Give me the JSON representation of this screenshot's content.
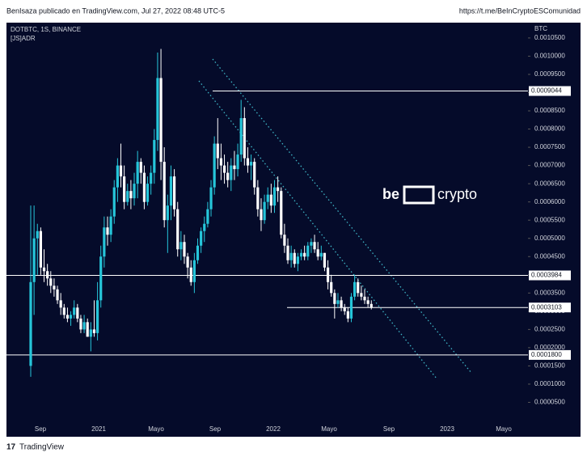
{
  "header": {
    "author": "BenIsaza publicado en TradingView.com, Jul 27, 2022 08:48 UTC-5",
    "link": "https://t.me/BeInCryptoESComunidad"
  },
  "footer": {
    "brand": "TradingView"
  },
  "watermark": {
    "left": "be",
    "right": "crypto"
  },
  "chart_data": {
    "type": "candlestick",
    "title": "DOTBTC, 1S, BINANCE",
    "subtitle": "[JS]ADR",
    "y_axis_label": "BTC",
    "up_color": "#26c6da",
    "down_color": "#ffffff",
    "x_labels": [
      "Sep",
      "2021",
      "Mayo",
      "Sep",
      "2022",
      "Mayo",
      "Sep",
      "2023",
      "Mayo"
    ],
    "ylim": [
      0,
      0.001092
    ],
    "yticks": [
      {
        "value": 5e-05,
        "label": "0.0000500"
      },
      {
        "value": 0.0001,
        "label": "0.0001000"
      },
      {
        "value": 0.00015,
        "label": "0.0001500"
      },
      {
        "value": 0.0002,
        "label": "0.0002000"
      },
      {
        "value": 0.00025,
        "label": "0.0002500"
      },
      {
        "value": 0.0003,
        "label": "0.0003000"
      },
      {
        "value": 0.00035,
        "label": "0.0003500"
      },
      {
        "value": 0.0004,
        "label": "0.0004000"
      },
      {
        "value": 0.00045,
        "label": "0.0004500"
      },
      {
        "value": 0.0005,
        "label": "0.0005000"
      },
      {
        "value": 0.00055,
        "label": "0.0005500"
      },
      {
        "value": 0.0006,
        "label": "0.0006000"
      },
      {
        "value": 0.00065,
        "label": "0.0006500"
      },
      {
        "value": 0.0007,
        "label": "0.0007000"
      },
      {
        "value": 0.00075,
        "label": "0.0007500"
      },
      {
        "value": 0.0008,
        "label": "0.0008000"
      },
      {
        "value": 0.00085,
        "label": "0.0008500"
      },
      {
        "value": 0.0009,
        "label": "0.0009000"
      },
      {
        "value": 0.00095,
        "label": "0.0009500"
      },
      {
        "value": 0.001,
        "label": "0.0010000"
      },
      {
        "value": 0.00105,
        "label": "0.0010500"
      }
    ],
    "levels": [
      {
        "value": 0.0009044,
        "label": "0.0009044"
      },
      {
        "value": 0.0003984,
        "label": "0.0003984"
      },
      {
        "value": 0.0003103,
        "label": "0.0003103"
      },
      {
        "value": 0.00018,
        "label": "0.0001800"
      }
    ],
    "ohlc": [
      [
        0.00015,
        0.00059,
        0.00012,
        0.00038
      ],
      [
        0.00038,
        0.00059,
        0.00029,
        0.0005
      ],
      [
        0.0005,
        0.00054,
        0.0004,
        0.00052
      ],
      [
        0.00052,
        0.00053,
        0.0004,
        0.00042
      ],
      [
        0.00042,
        0.00047,
        0.00038,
        0.00041
      ],
      [
        0.00041,
        0.00043,
        0.00037,
        0.00039
      ],
      [
        0.00039,
        0.00041,
        0.00035,
        0.00037
      ],
      [
        0.00037,
        0.00039,
        0.00034,
        0.00036
      ],
      [
        0.00036,
        0.00037,
        0.00032,
        0.00033
      ],
      [
        0.00033,
        0.00035,
        0.00029,
        0.00031
      ],
      [
        0.00031,
        0.00032,
        0.00028,
        0.00029
      ],
      [
        0.00029,
        0.00031,
        0.00027,
        0.00028
      ],
      [
        0.00028,
        0.0003,
        0.00026,
        0.00029
      ],
      [
        0.00029,
        0.00033,
        0.00028,
        0.00031
      ],
      [
        0.00031,
        0.00032,
        0.00027,
        0.00028
      ],
      [
        0.00028,
        0.00029,
        0.00024,
        0.00025
      ],
      [
        0.00025,
        0.00029,
        0.00024,
        0.00027
      ],
      [
        0.00027,
        0.00028,
        0.00023,
        0.00023
      ],
      [
        0.00023,
        0.00027,
        0.00019,
        0.00025
      ],
      [
        0.00025,
        0.00033,
        0.00023,
        0.00024
      ],
      [
        0.00024,
        0.00038,
        0.00022,
        0.00033
      ],
      [
        0.00033,
        0.00048,
        0.00031,
        0.00045
      ],
      [
        0.00045,
        0.00056,
        0.00042,
        0.00053
      ],
      [
        0.00053,
        0.00056,
        0.00048,
        0.00051
      ],
      [
        0.00051,
        0.00058,
        0.00049,
        0.00056
      ],
      [
        0.00056,
        0.00066,
        0.00054,
        0.00064
      ],
      [
        0.00064,
        0.00072,
        0.0006,
        0.0007
      ],
      [
        0.0007,
        0.00076,
        0.00064,
        0.00067
      ],
      [
        0.00067,
        0.0007,
        0.00058,
        0.0006
      ],
      [
        0.0006,
        0.00065,
        0.00059,
        0.00063
      ],
      [
        0.00063,
        0.00066,
        0.00058,
        0.00061
      ],
      [
        0.00061,
        0.00068,
        0.00059,
        0.00065
      ],
      [
        0.00065,
        0.00074,
        0.00061,
        0.00071
      ],
      [
        0.00071,
        0.00072,
        0.00065,
        0.00068
      ],
      [
        0.00068,
        0.0007,
        0.00058,
        0.0006
      ],
      [
        0.0006,
        0.00067,
        0.00059,
        0.00065
      ],
      [
        0.00065,
        0.0007,
        0.00062,
        0.00068
      ],
      [
        0.00068,
        0.0008,
        0.00065,
        0.00077
      ],
      [
        0.00077,
        0.00101,
        0.00074,
        0.00094
      ],
      [
        0.00094,
        0.00102,
        0.00066,
        0.00071
      ],
      [
        0.00071,
        0.00075,
        0.00053,
        0.00055
      ],
      [
        0.00055,
        0.00062,
        0.00046,
        0.00059
      ],
      [
        0.00059,
        0.0007,
        0.00055,
        0.00067
      ],
      [
        0.00067,
        0.00069,
        0.00056,
        0.00058
      ],
      [
        0.00058,
        0.0006,
        0.00045,
        0.00047
      ],
      [
        0.00047,
        0.00052,
        0.00044,
        0.00049
      ],
      [
        0.00049,
        0.00051,
        0.00043,
        0.00045
      ],
      [
        0.00045,
        0.00046,
        0.00039,
        0.00042
      ],
      [
        0.00042,
        0.00044,
        0.00037,
        0.00038
      ],
      [
        0.00038,
        0.00046,
        0.00035,
        0.00044
      ],
      [
        0.00044,
        0.0005,
        0.00043,
        0.00048
      ],
      [
        0.00048,
        0.00053,
        0.00046,
        0.00052
      ],
      [
        0.00052,
        0.00056,
        0.00049,
        0.00054
      ],
      [
        0.00054,
        0.0006,
        0.00053,
        0.00058
      ],
      [
        0.00058,
        0.00066,
        0.00056,
        0.00064
      ],
      [
        0.00064,
        0.00078,
        0.00062,
        0.00076
      ],
      [
        0.00076,
        0.00083,
        0.00069,
        0.00072
      ],
      [
        0.00072,
        0.00076,
        0.00066,
        0.0007
      ],
      [
        0.0007,
        0.00073,
        0.00065,
        0.00068
      ],
      [
        0.00068,
        0.00071,
        0.00064,
        0.00066
      ],
      [
        0.00066,
        0.00072,
        0.00063,
        0.0007
      ],
      [
        0.0007,
        0.00074,
        0.00066,
        0.00069
      ],
      [
        0.00069,
        0.00076,
        0.00067,
        0.00073
      ],
      [
        0.00073,
        0.00088,
        0.00071,
        0.00083
      ],
      [
        0.00083,
        0.00086,
        0.0007,
        0.00072
      ],
      [
        0.00072,
        0.00075,
        0.00068,
        0.0007
      ],
      [
        0.0007,
        0.00073,
        0.00066,
        0.00071
      ],
      [
        0.00071,
        0.00072,
        0.00062,
        0.00064
      ],
      [
        0.00064,
        0.00066,
        0.00056,
        0.00058
      ],
      [
        0.00058,
        0.00061,
        0.00052,
        0.00055
      ],
      [
        0.00055,
        0.00062,
        0.00054,
        0.0006
      ],
      [
        0.0006,
        0.00064,
        0.00058,
        0.00062
      ],
      [
        0.00062,
        0.00065,
        0.00057,
        0.00059
      ],
      [
        0.00059,
        0.00066,
        0.00057,
        0.00064
      ],
      [
        0.00064,
        0.00067,
        0.0006,
        0.00063
      ],
      [
        0.00063,
        0.00064,
        0.0005,
        0.00051
      ],
      [
        0.00051,
        0.00054,
        0.00046,
        0.00048
      ],
      [
        0.00048,
        0.0005,
        0.00043,
        0.00044
      ],
      [
        0.00044,
        0.00048,
        0.00042,
        0.00046
      ],
      [
        0.00046,
        0.00047,
        0.00042,
        0.00043
      ],
      [
        0.00043,
        0.00046,
        0.00041,
        0.00045
      ],
      [
        0.00045,
        0.00047,
        0.00044,
        0.00046
      ],
      [
        0.00046,
        0.00048,
        0.00044,
        0.00045
      ],
      [
        0.00045,
        0.00049,
        0.00044,
        0.00048
      ],
      [
        0.00048,
        0.0005,
        0.00046,
        0.00049
      ],
      [
        0.00049,
        0.00051,
        0.00046,
        0.00047
      ],
      [
        0.00047,
        0.00049,
        0.00044,
        0.00045
      ],
      [
        0.00045,
        0.00048,
        0.00044,
        0.00046
      ],
      [
        0.00046,
        0.00046,
        0.00041,
        0.00042
      ],
      [
        0.00042,
        0.00044,
        0.00036,
        0.00038
      ],
      [
        0.00038,
        0.0004,
        0.00034,
        0.00035
      ],
      [
        0.00035,
        0.00036,
        0.00028,
        0.00032
      ],
      [
        0.00032,
        0.00035,
        0.00031,
        0.00033
      ],
      [
        0.00033,
        0.00034,
        0.0003,
        0.00031
      ],
      [
        0.00031,
        0.00032,
        0.00029,
        0.0003
      ],
      [
        0.0003,
        0.00031,
        0.00027,
        0.00028
      ],
      [
        0.00028,
        0.00035,
        0.00027,
        0.00034
      ],
      [
        0.00034,
        0.0004,
        0.00033,
        0.00038
      ],
      [
        0.00038,
        0.00039,
        0.00034,
        0.00035
      ],
      [
        0.00035,
        0.00037,
        0.00033,
        0.00034
      ],
      [
        0.00034,
        0.00036,
        0.00032,
        0.00033
      ],
      [
        0.00033,
        0.00034,
        0.00031,
        0.00032
      ],
      [
        0.00032,
        0.00033,
        0.000305,
        0.00031
      ]
    ]
  }
}
